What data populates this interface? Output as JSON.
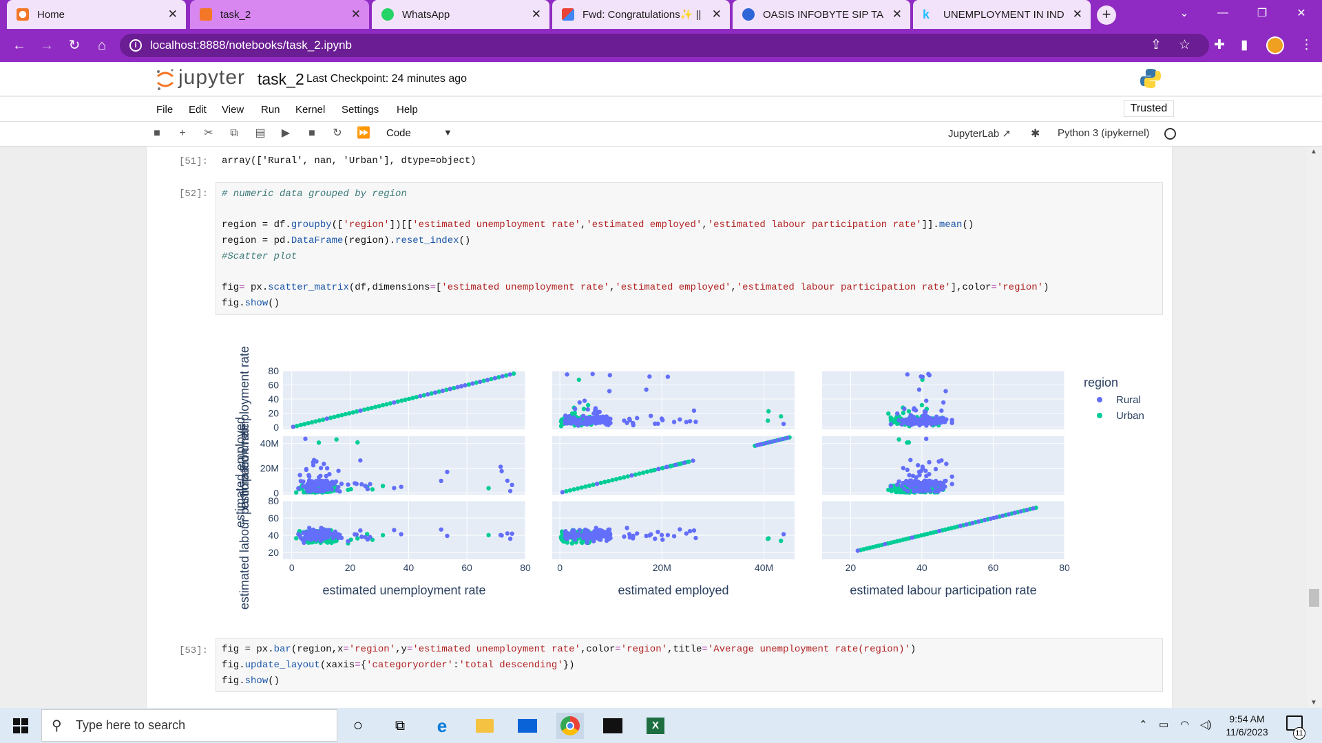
{
  "browser": {
    "tabs": [
      {
        "label": "Home",
        "favicon": "jupyter-icon"
      },
      {
        "label": "task_2",
        "favicon": "jupyter-notebook-icon",
        "active": true
      },
      {
        "label": "WhatsApp",
        "favicon": "whatsapp-icon"
      },
      {
        "label": "Fwd: Congratulations✨ ||",
        "favicon": "gmail-icon"
      },
      {
        "label": "OASIS INFOBYTE SIP TASK",
        "favicon": "oasis-icon"
      },
      {
        "label": "UNEMPLOYMENT IN INDIA",
        "favicon": "kaggle-icon"
      }
    ],
    "url": "localhost:8888/notebooks/task_2.ipynb",
    "accent_color": "#8f2bc2"
  },
  "jupyter": {
    "logo_text": "jupyter",
    "notebook_name": "task_2",
    "checkpoint": "Last Checkpoint: 24 minutes ago",
    "menu": [
      "File",
      "Edit",
      "View",
      "Run",
      "Kernel",
      "Settings",
      "Help"
    ],
    "trusted": "Trusted",
    "cell_type": "Code",
    "jupyterlab_link": "JupyterLab",
    "kernel": "Python 3 (ipykernel)"
  },
  "cells": {
    "c51": {
      "prompt": "[51]:",
      "output": "array(['Rural', nan, 'Urban'], dtype=object)"
    },
    "c52": {
      "prompt": "[52]:",
      "line1": "# numeric data grouped by region",
      "line2a": "region = df.",
      "line2b": "groupby",
      "line2c": "([",
      "line2d": "'region'",
      "line2e": "])[[",
      "line2f": "'estimated unemployment rate'",
      "line2g": ",",
      "line2h": "'estimated employed'",
      "line2i": ",",
      "line2j": "'estimated labour participation rate'",
      "line2k": "]].",
      "line2l": "mean",
      "line2m": "()",
      "line3a": "region = pd.",
      "line3b": "DataFrame",
      "line3c": "(region).",
      "line3d": "reset_index",
      "line3e": "()",
      "line4": "#Scatter plot",
      "line5a": "fig",
      "line5b": "=",
      "line5c": " px.",
      "line5d": "scatter_matrix",
      "line5e": "(df,dimensions",
      "line5f": "=",
      "line5g": "[",
      "line5h": "'estimated unemployment rate'",
      "line5i": ",",
      "line5j": "'estimated employed'",
      "line5k": ",",
      "line5l": "'estimated labour participation rate'",
      "line5m": "],color",
      "line5n": "=",
      "line5o": "'region'",
      "line5p": ")",
      "line6a": "fig.",
      "line6b": "show",
      "line6c": "()"
    },
    "c53": {
      "prompt": "[53]:",
      "line1a": "fig = px.",
      "line1b": "bar",
      "line1c": "(region,x",
      "line1d": "=",
      "line1e": "'region'",
      "line1f": ",y",
      "line1g": "=",
      "line1h": "'estimated unemployment rate'",
      "line1i": ",color",
      "line1j": "=",
      "line1k": "'region'",
      "line1l": ",title",
      "line1m": "=",
      "line1n": "'Average unemployment rate(region)'",
      "line1o": ")",
      "line2a": "fig.",
      "line2b": "update_layout",
      "line2c": "(xaxis",
      "line2d": "=",
      "line2e": "{",
      "line2f": "'categoryorder'",
      "line2g": ":",
      "line2h": "'total descending'",
      "line2i": "})",
      "line3a": "fig.",
      "line3b": "show",
      "line3c": "()"
    }
  },
  "chart_data": {
    "type": "scatter",
    "kind": "scatter_matrix",
    "dimensions": [
      "estimated unemployment rate",
      "estimated employed",
      "estimated labour participation rate"
    ],
    "row_labels": [
      "estimated unemployment rate",
      "estimated employed",
      "estimated labour participation rate"
    ],
    "col_labels": [
      "estimated unemployment rate",
      "estimated employed",
      "estimated labour participation rate"
    ],
    "x_ticks": [
      [
        "0",
        "20",
        "40",
        "60",
        "80"
      ],
      [
        "0",
        "20M",
        "40M"
      ],
      [
        "20",
        "40",
        "60",
        "80"
      ]
    ],
    "y_ticks": [
      [
        "0",
        "20",
        "40",
        "60",
        "80"
      ],
      [
        "0",
        "20M",
        "40M"
      ],
      [
        "20",
        "40",
        "60",
        "80"
      ]
    ],
    "ranges": [
      [
        -3,
        80
      ],
      [
        -1.5,
        46
      ],
      [
        12,
        80
      ]
    ],
    "legend_title": "region",
    "legend_position": "right",
    "series": [
      {
        "name": "Rural",
        "color": "#636efa"
      },
      {
        "name": "Urban",
        "color": "#00cc96"
      }
    ],
    "approx_points": {
      "unemployment": [
        1,
        3,
        5,
        8,
        10,
        12,
        15,
        20,
        25,
        30,
        35,
        45,
        55,
        75
      ],
      "employed_millions": [
        0.5,
        2,
        5,
        8,
        12,
        16,
        20,
        25,
        40,
        45
      ],
      "participation": [
        15,
        25,
        35,
        38,
        40,
        42,
        45,
        50,
        55,
        60,
        65,
        70
      ]
    }
  },
  "taskbar": {
    "search_placeholder": "Type here to search",
    "time": "9:54 AM",
    "date": "11/6/2023",
    "notifications": "11"
  }
}
